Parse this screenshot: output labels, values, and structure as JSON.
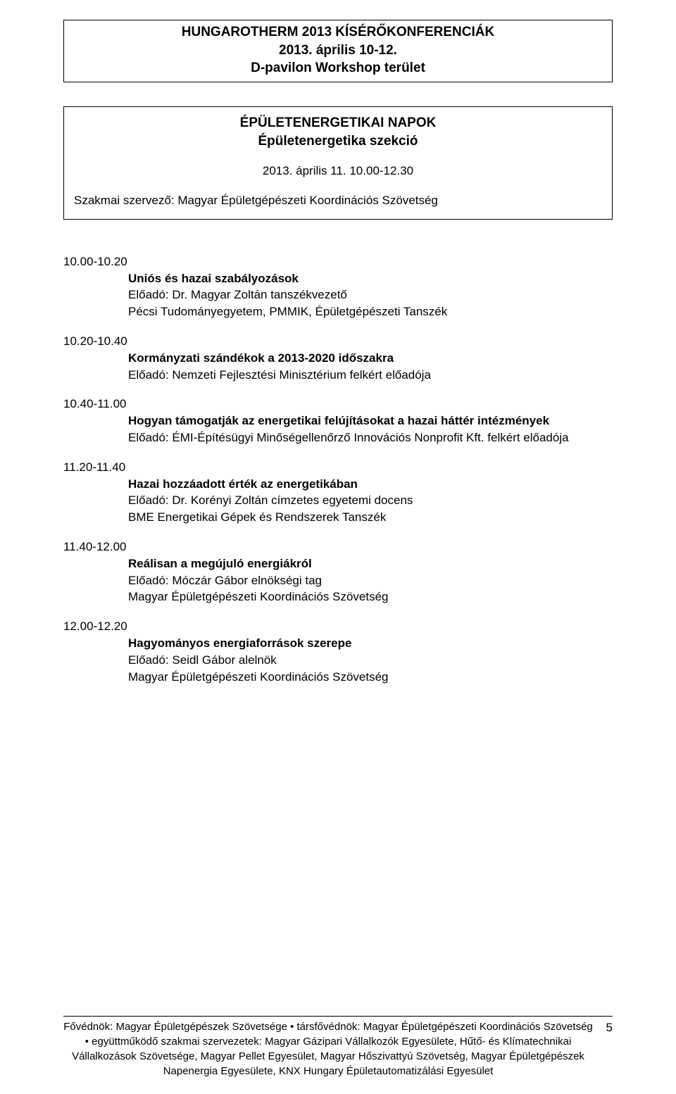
{
  "header": {
    "line1": "HUNGAROTHERM 2013 KÍSÉRŐKONFERENCIÁK",
    "line2": "2013. április 10-12.",
    "line3": "D-pavilon Workshop terület"
  },
  "section": {
    "title1": "ÉPÜLETENERGETIKAI NAPOK",
    "title2": "Épületenergetika szekció",
    "date": "2013. április 11. 10.00-12.30",
    "organizer": "Szakmai szervező: Magyar Épületgépészeti Koordinációs Szövetség"
  },
  "entries": [
    {
      "time": "10.00-10.20",
      "title": "Uniós és hazai szabályozások",
      "line2": "Előadó: Dr. Magyar Zoltán tanszékvezető",
      "line3": "Pécsi Tudományegyetem, PMMIK, Épületgépészeti Tanszék"
    },
    {
      "time": "10.20-10.40",
      "title": "Kormányzati szándékok a 2013-2020 időszakra",
      "line2": "Előadó: Nemzeti Fejlesztési Minisztérium felkért előadója",
      "line3": ""
    },
    {
      "time": "10.40-11.00",
      "title": "Hogyan támogatják az energetikai felújításokat a hazai háttér intézmények",
      "line2": "Előadó: ÉMI-Építésügyi Minőségellenőrző Innovációs Nonprofit Kft. felkért előadója",
      "line3": ""
    },
    {
      "time": "11.20-11.40",
      "title": "Hazai hozzáadott érték az energetikában",
      "line2": "Előadó: Dr. Korényi Zoltán címzetes egyetemi docens",
      "line3": "BME Energetikai Gépek és Rendszerek Tanszék"
    },
    {
      "time": "11.40-12.00",
      "title": "Reálisan a megújuló energiákról",
      "line2": "Előadó: Móczár Gábor elnökségi tag",
      "line3": "Magyar Épületgépészeti Koordinációs Szövetség"
    },
    {
      "time": "12.00-12.20",
      "title": "Hagyományos energiaforrások szerepe",
      "line2": "Előadó: Seidl Gábor alelnök",
      "line3": "Magyar Épületgépészeti Koordinációs Szövetség"
    }
  ],
  "footer": {
    "text": "Fővédnök: Magyar Épületgépészek Szövetsége • társfővédnök: Magyar Épületgépészeti Koordinációs Szövetség • együttműködő szakmai szervezetek: Magyar Gázipari Vállalkozók Egyesülete, Hűtő- és Klímatechnikai Vállalkozások Szövetsége, Magyar Pellet Egyesület, Magyar Hőszivattyú Szövetség, Magyar Épületgépészek Napenergia Egyesülete, KNX Hungary Épületautomatizálási Egyesület",
    "page": "5"
  }
}
